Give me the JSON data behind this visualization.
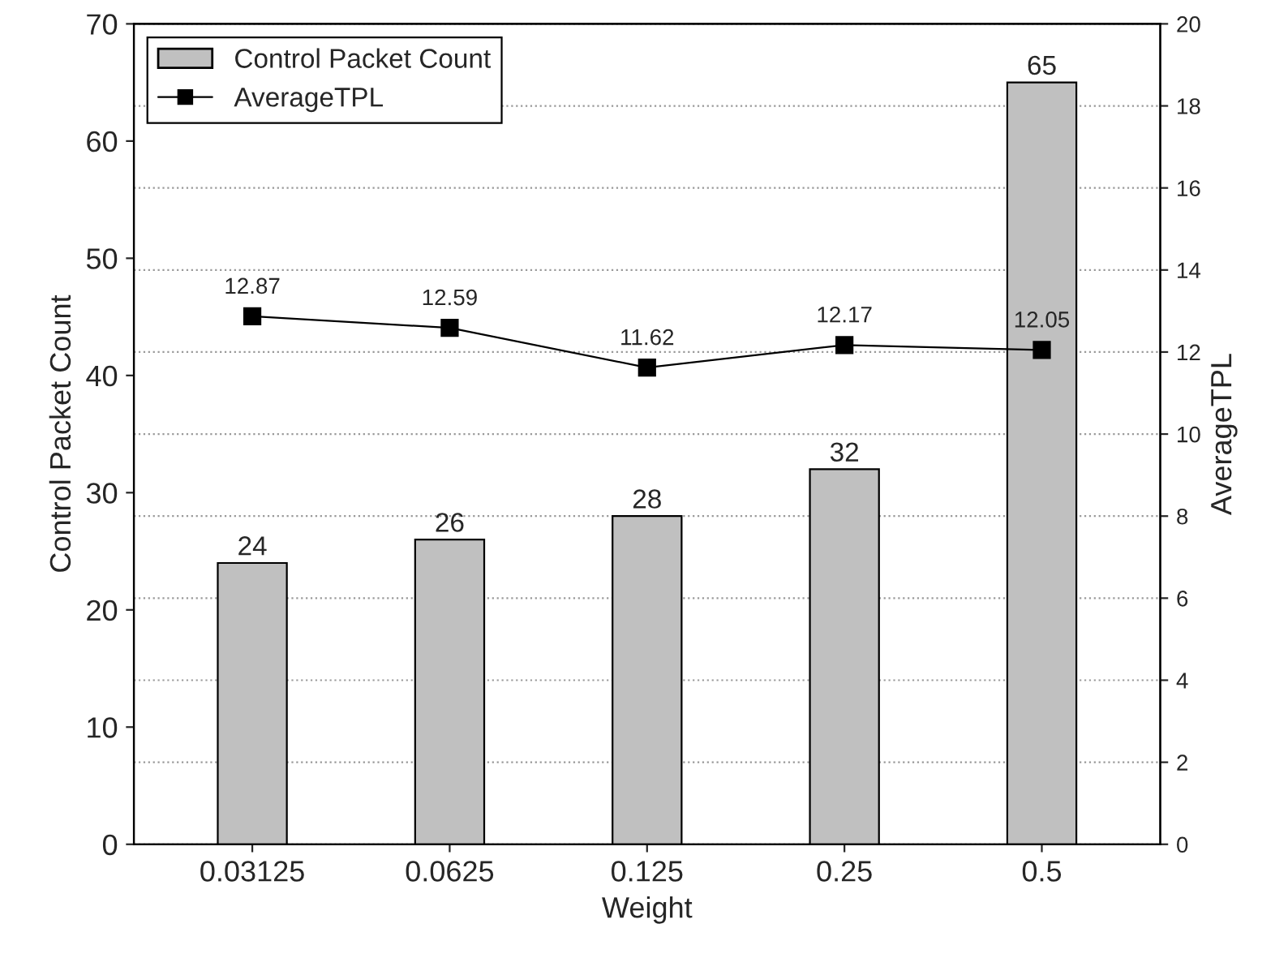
{
  "chart_data": {
    "type": "bar",
    "xlabel": "Weight",
    "ylabel": "Control Packet Count",
    "y2label": "AverageTPL",
    "categories": [
      "0.03125",
      "0.0625",
      "0.125",
      "0.25",
      "0.5"
    ],
    "series": [
      {
        "name": "Control Packet Count",
        "color": "#c0c0c0",
        "values": [
          24,
          26,
          28,
          32,
          65
        ]
      },
      {
        "name": "AverageTPL",
        "type": "line",
        "axis": "y2",
        "color": "#000000",
        "marker": "square",
        "line_style": "solid",
        "values": [
          12.87,
          12.59,
          11.62,
          12.17,
          12.05
        ]
      }
    ],
    "ylim": [
      0,
      70
    ],
    "yticks": [
      0,
      10,
      20,
      30,
      40,
      50,
      60,
      70
    ],
    "y2lim": [
      0,
      20
    ],
    "y2ticks": [
      0,
      2,
      4,
      6,
      8,
      10,
      12,
      14,
      16,
      18,
      20
    ],
    "data_labels": true,
    "grid": "y",
    "legend": "top left"
  }
}
